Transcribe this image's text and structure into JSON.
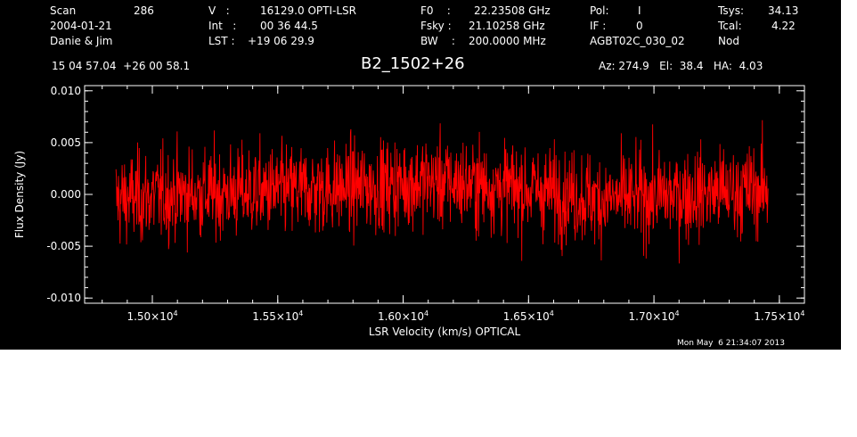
{
  "header": {
    "scan_label": "Scan",
    "scan_value": "286",
    "date": "2004-01-21",
    "observers": "Danie & Jim",
    "v_label": "V   :",
    "v_value": "16129.0 OPTI-LSR",
    "int_label": "Int   :",
    "int_value": "00 36 44.5",
    "lst_label": "LST :",
    "lst_value": "+19 06 29.9",
    "f0_label": "F0    :",
    "f0_value": "22.23508 GHz",
    "fsky_label": "Fsky :",
    "fsky_value": "21.10258 GHz",
    "bw_label": "BW    :",
    "bw_value": "200.0000 MHz",
    "pol_label": "Pol:",
    "pol_value": "I",
    "if_label": "IF :",
    "if_value": "0",
    "project": "AGBT02C_030_02",
    "tsys_label": "Tsys:",
    "tsys_value": "34.13",
    "tcal_label": "Tcal:",
    "tcal_value": "4.22",
    "mode": "Nod",
    "coords": "15 04 57.04  +26 00 58.1",
    "source": "B2_1502+26",
    "az_el_ha": "Az: 274.9   El:  38.4   HA:  4.03",
    "timestamp": "Mon May  6 21:34:07 2013"
  },
  "colors": {
    "background": "#000000",
    "axes": "#ffffff",
    "series": "#ff0000"
  },
  "chart_data": {
    "type": "line",
    "xlabel": "LSR Velocity (km/s) OPTICAL",
    "ylabel": "Flux Density (Jy)",
    "xlim": [
      14730,
      17600
    ],
    "ylim": [
      -0.0105,
      0.0105
    ],
    "xticks": [
      {
        "mant": "1.50",
        "exp": "4",
        "value": 15000
      },
      {
        "mant": "1.55",
        "exp": "4",
        "value": 15500
      },
      {
        "mant": "1.60",
        "exp": "4",
        "value": 16000
      },
      {
        "mant": "1.65",
        "exp": "4",
        "value": 16500
      },
      {
        "mant": "1.70",
        "exp": "4",
        "value": 17000
      },
      {
        "mant": "1.75",
        "exp": "4",
        "value": 17500
      }
    ],
    "yticks": [
      {
        "label": "0.010",
        "value": 0.01
      },
      {
        "label": "0.005",
        "value": 0.005
      },
      {
        "label": "0.000",
        "value": 0.0
      },
      {
        "label": "-0.005",
        "value": -0.005
      },
      {
        "label": "-0.010",
        "value": -0.01
      }
    ],
    "series": [
      {
        "x_start": 14855,
        "x_end": 17455,
        "noise_rms": 0.0022,
        "baseline": [
          [
            14855,
            -0.0005
          ],
          [
            15100,
            0.0
          ],
          [
            15500,
            0.0003
          ],
          [
            15900,
            0.0008
          ],
          [
            16100,
            0.0013
          ],
          [
            16500,
            0.0005
          ],
          [
            16800,
            -0.0005
          ],
          [
            17100,
            0.0
          ],
          [
            17455,
            0.0005
          ]
        ]
      }
    ]
  }
}
